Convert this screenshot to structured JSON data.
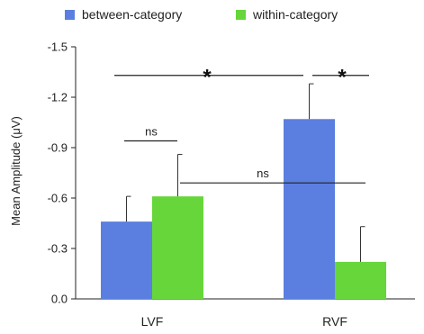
{
  "chart_data": {
    "type": "bar",
    "title": "",
    "xlabel": "",
    "ylabel": "Mean Amplitude (μV)",
    "categories": [
      "LVF",
      "RVF"
    ],
    "series": [
      {
        "name": "between-category",
        "color": "#5b7fe0",
        "values": [
          -0.46,
          -1.07
        ],
        "errors": [
          0.15,
          0.21
        ]
      },
      {
        "name": "within-category",
        "color": "#66d63a",
        "values": [
          -0.61,
          -0.22
        ],
        "errors": [
          0.25,
          0.21
        ]
      }
    ],
    "yticks": [
      "-1.5",
      "-1.2",
      "-0.9",
      "-0.6",
      "-0.3",
      "0.0"
    ],
    "yaxis_direction": "negative-up",
    "ylim": [
      0.0,
      -1.5
    ],
    "legend": "top",
    "grid": false,
    "annotations": [
      {
        "id": "lvf-ns",
        "text": "ns",
        "y": -0.94
      },
      {
        "id": "cross-ns",
        "text": "ns",
        "y": -0.69
      },
      {
        "id": "between-star",
        "text": "*",
        "y": -1.33
      },
      {
        "id": "rvf-star",
        "text": "*",
        "y": -1.33
      }
    ]
  }
}
